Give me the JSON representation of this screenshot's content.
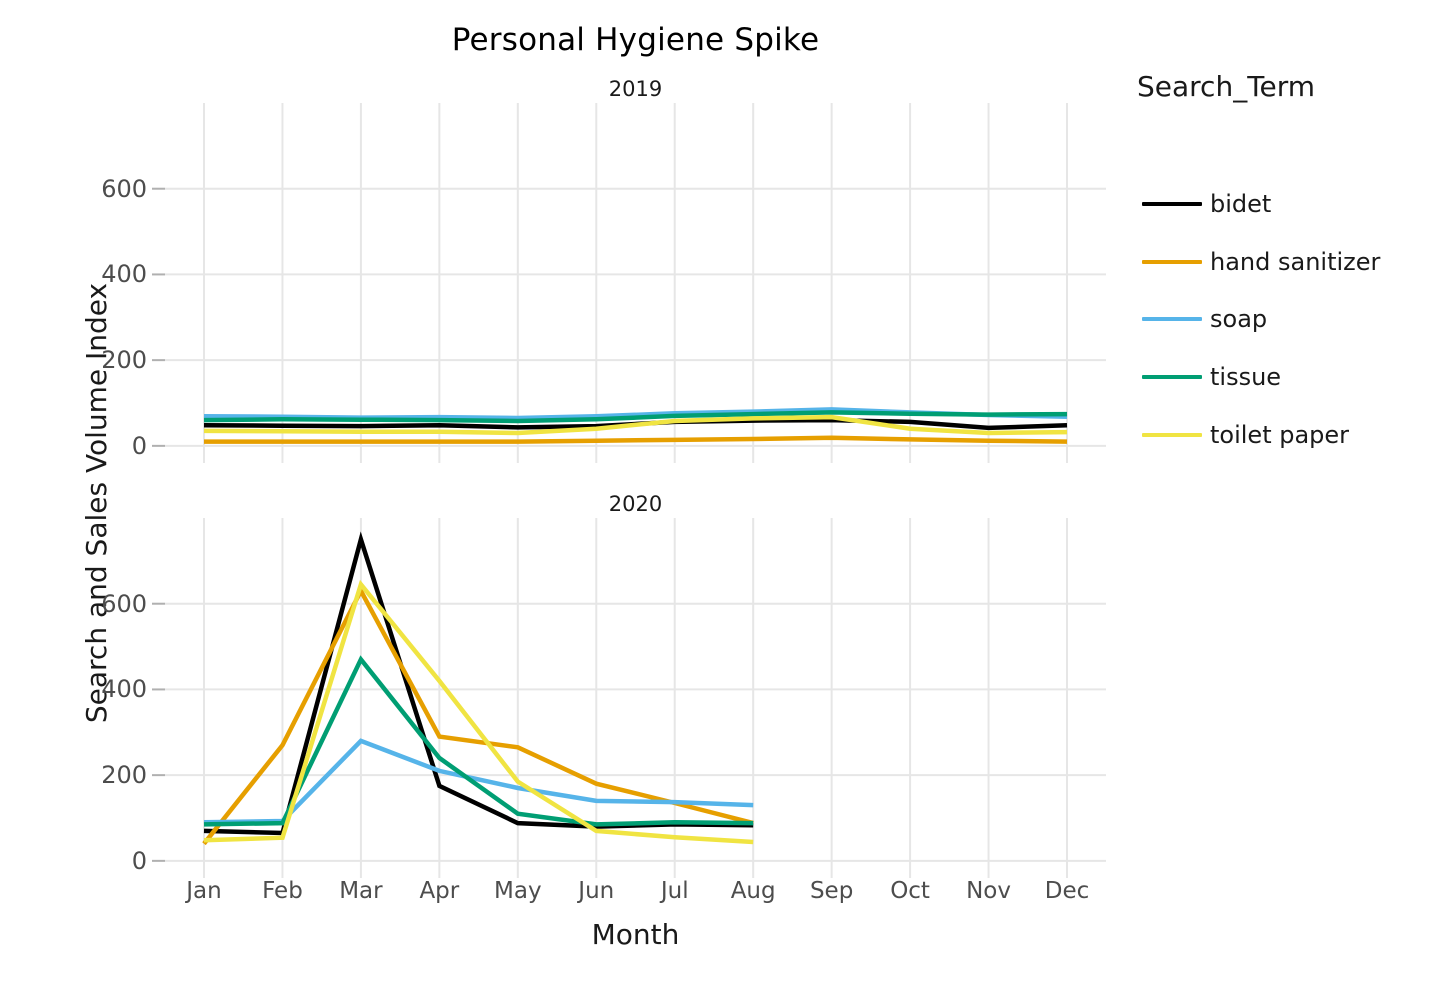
{
  "chart_data": {
    "type": "line",
    "title": "Personal Hygiene Spike",
    "xlabel": "Month",
    "ylabel": "Search and Sales Volume Index",
    "legend_title": "Search_Term",
    "legend_position": "right",
    "grid": true,
    "categories": [
      "Jan",
      "Feb",
      "Mar",
      "Apr",
      "May",
      "Jun",
      "Jul",
      "Aug",
      "Sep",
      "Oct",
      "Nov",
      "Dec"
    ],
    "yticks": [
      0,
      200,
      400,
      600
    ],
    "ylim_draw": [
      -40,
      800
    ],
    "colors": {
      "grid": "#e6e6e6",
      "tick_mark": "#b0b0b0",
      "tick_text": "#4d4d4d",
      "title_text": "#000000",
      "axis_title_text": "#1a1a1a"
    },
    "facets": [
      {
        "label": "2019",
        "series": [
          {
            "name": "bidet",
            "color": "#000000",
            "values": [
              48,
              47,
              46,
              48,
              43,
              46,
              56,
              59,
              60,
              56,
              42,
              48
            ]
          },
          {
            "name": "hand sanitizer",
            "color": "#E69F00",
            "values": [
              10,
              10,
              10,
              10,
              10,
              12,
              14,
              16,
              19,
              15,
              12,
              10
            ]
          },
          {
            "name": "soap",
            "color": "#56B4E9",
            "values": [
              69,
              68,
              66,
              67,
              65,
              69,
              76,
              80,
              85,
              78,
              72,
              68
            ]
          },
          {
            "name": "tissue",
            "color": "#009E73",
            "values": [
              60,
              62,
              61,
              60,
              58,
              62,
              70,
              74,
              78,
              75,
              73,
              74
            ]
          },
          {
            "name": "toilet paper",
            "color": "#F0E442",
            "values": [
              35,
              34,
              33,
              33,
              30,
              40,
              58,
              64,
              67,
              40,
              30,
              32
            ]
          }
        ]
      },
      {
        "label": "2020",
        "series": [
          {
            "name": "bidet",
            "color": "#000000",
            "values": [
              70,
              65,
              750,
              175,
              88,
              80,
              85,
              83
            ]
          },
          {
            "name": "hand sanitizer",
            "color": "#E69F00",
            "values": [
              40,
              270,
              630,
              290,
              265,
              180,
              135,
              88
            ]
          },
          {
            "name": "soap",
            "color": "#56B4E9",
            "values": [
              90,
              93,
              280,
              210,
              170,
              140,
              137,
              130
            ]
          },
          {
            "name": "tissue",
            "color": "#009E73",
            "values": [
              85,
              88,
              470,
              240,
              110,
              85,
              90,
              88
            ]
          },
          {
            "name": "toilet paper",
            "color": "#F0E442",
            "values": [
              48,
              54,
              645,
              420,
              185,
              70,
              55,
              44
            ]
          }
        ]
      }
    ]
  }
}
